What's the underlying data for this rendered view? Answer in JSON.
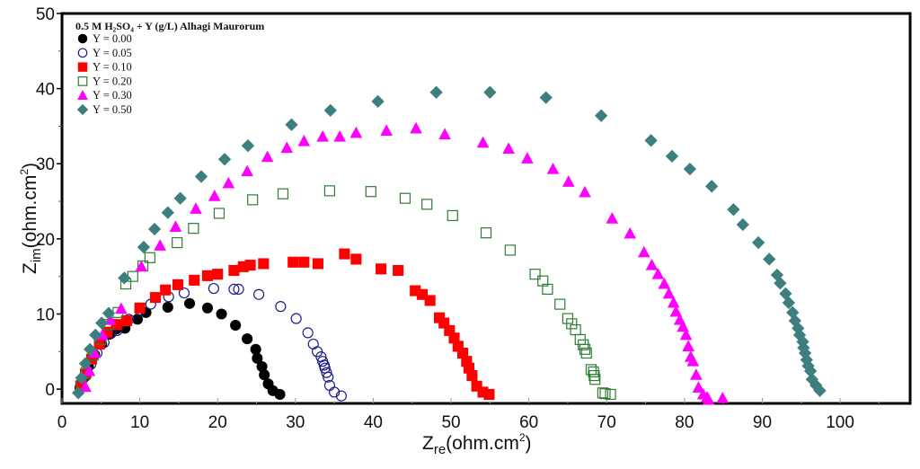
{
  "chart_data": {
    "type": "scatter",
    "title": "",
    "xlabel": "Z",
    "xlabel_sub": "re",
    "xlabel_unit": "(ohm.cm",
    "xlabel_sup": "2",
    "xlabel_close": ")",
    "ylabel": "Z",
    "ylabel_sub": "im",
    "ylabel_unit": "(ohm.cm",
    "ylabel_sup": "2",
    "ylabel_close": ")",
    "xlim": [
      0,
      109
    ],
    "ylim": [
      -1.9,
      50
    ],
    "xticks": [
      0,
      10,
      20,
      30,
      40,
      50,
      60,
      70,
      80,
      90,
      100
    ],
    "yticks": [
      0,
      10,
      20,
      30,
      40,
      50
    ],
    "xminor": [
      5,
      15,
      25,
      35,
      45,
      55,
      65,
      75,
      85,
      95,
      105
    ],
    "yminor": [
      5,
      15,
      25,
      35,
      45
    ],
    "grid": false,
    "legend_title": "0.5 M H₂SO₄ + Y (g/L) Alhagi Maurorum",
    "legend_position": "top-left",
    "series": [
      {
        "name": "Y = 0.00",
        "marker": "filled-circle",
        "color": "#000000",
        "points": [
          [
            2.3,
            0.2
          ],
          [
            2.8,
            1.5
          ],
          [
            3.4,
            3.0
          ],
          [
            4.2,
            4.6
          ],
          [
            5.1,
            6.0
          ],
          [
            6.1,
            7.3
          ],
          [
            7.0,
            8.0
          ],
          [
            8.1,
            8.1
          ],
          [
            9.7,
            9.3
          ],
          [
            10.8,
            10.2
          ],
          [
            13.6,
            10.9
          ],
          [
            16.4,
            11.4
          ],
          [
            18.7,
            10.8
          ],
          [
            20.5,
            10.0
          ],
          [
            22.3,
            8.5
          ],
          [
            23.8,
            6.7
          ],
          [
            24.9,
            5.3
          ],
          [
            25.1,
            4.1
          ],
          [
            25.7,
            3.0
          ],
          [
            26.0,
            1.9
          ],
          [
            26.5,
            0.7
          ],
          [
            27.1,
            -0.2
          ],
          [
            28.0,
            -0.7
          ]
        ]
      },
      {
        "name": "Y = 0.05",
        "marker": "open-circle",
        "color": "#1a1a8c",
        "points": [
          [
            2.4,
            0.3
          ],
          [
            3.0,
            1.7
          ],
          [
            3.7,
            3.3
          ],
          [
            4.5,
            4.8
          ],
          [
            5.4,
            6.2
          ],
          [
            6.3,
            7.4
          ],
          [
            7.1,
            7.8
          ],
          [
            8.6,
            9.3
          ],
          [
            10.0,
            10.5
          ],
          [
            11.4,
            11.3
          ],
          [
            13.7,
            12.3
          ],
          [
            15.7,
            12.8
          ],
          [
            19.5,
            13.4
          ],
          [
            22.1,
            13.3
          ],
          [
            22.7,
            13.3
          ],
          [
            25.3,
            12.6
          ],
          [
            28.1,
            11.0
          ],
          [
            30.1,
            9.4
          ],
          [
            31.6,
            7.5
          ],
          [
            32.3,
            6.0
          ],
          [
            32.8,
            5.0
          ],
          [
            33.3,
            4.3
          ],
          [
            33.5,
            3.7
          ],
          [
            33.7,
            3.2
          ],
          [
            33.8,
            2.8
          ],
          [
            34.0,
            2.2
          ],
          [
            34.2,
            1.6
          ],
          [
            34.4,
            0.5
          ],
          [
            35.0,
            -0.4
          ],
          [
            35.9,
            -0.9
          ]
        ]
      },
      {
        "name": "Y = 0.10",
        "marker": "filled-square",
        "color": "#ff0000",
        "points": [
          [
            2.4,
            0.4
          ],
          [
            3.0,
            2.0
          ],
          [
            3.8,
            4.0
          ],
          [
            4.8,
            6.0
          ],
          [
            5.8,
            7.6
          ],
          [
            7.0,
            8.6
          ],
          [
            8.3,
            9.1
          ],
          [
            10.0,
            10.8
          ],
          [
            12.0,
            12.2
          ],
          [
            13.3,
            13.2
          ],
          [
            14.9,
            13.9
          ],
          [
            17.0,
            14.5
          ],
          [
            18.7,
            15.1
          ],
          [
            20.0,
            15.3
          ],
          [
            22.1,
            15.8
          ],
          [
            23.3,
            16.3
          ],
          [
            24.2,
            16.5
          ],
          [
            25.9,
            16.7
          ],
          [
            29.7,
            16.9
          ],
          [
            31.1,
            16.9
          ],
          [
            32.9,
            16.7
          ],
          [
            36.3,
            18.0
          ],
          [
            37.8,
            17.3
          ],
          [
            41.0,
            16.0
          ],
          [
            43.2,
            15.8
          ],
          [
            45.4,
            13.1
          ],
          [
            46.3,
            12.6
          ],
          [
            47.3,
            11.8
          ],
          [
            48.5,
            9.5
          ],
          [
            49.1,
            8.8
          ],
          [
            49.8,
            7.8
          ],
          [
            50.4,
            6.8
          ],
          [
            50.9,
            5.7
          ],
          [
            51.5,
            4.8
          ],
          [
            52.0,
            3.7
          ],
          [
            52.3,
            2.8
          ],
          [
            52.7,
            1.8
          ],
          [
            53.3,
            0.4
          ],
          [
            54.1,
            -0.4
          ],
          [
            54.9,
            -0.7
          ]
        ]
      },
      {
        "name": "Y = 0.20",
        "marker": "open-square",
        "color": "#2e7d32",
        "points": [
          [
            2.5,
            0.5
          ],
          [
            3.1,
            2.2
          ],
          [
            4.0,
            4.5
          ],
          [
            5.0,
            6.6
          ],
          [
            6.0,
            8.6
          ],
          [
            7.2,
            10.2
          ],
          [
            8.2,
            14.0
          ],
          [
            9.1,
            15.0
          ],
          [
            10.4,
            16.4
          ],
          [
            11.3,
            17.5
          ],
          [
            14.8,
            19.5
          ],
          [
            16.9,
            21.4
          ],
          [
            20.2,
            23.4
          ],
          [
            24.5,
            25.2
          ],
          [
            28.4,
            26.0
          ],
          [
            34.4,
            26.4
          ],
          [
            39.7,
            26.3
          ],
          [
            44.1,
            25.4
          ],
          [
            46.9,
            24.6
          ],
          [
            50.2,
            23.1
          ],
          [
            54.5,
            20.8
          ],
          [
            57.6,
            18.5
          ],
          [
            60.8,
            15.3
          ],
          [
            61.8,
            14.4
          ],
          [
            62.4,
            13.3
          ],
          [
            64.0,
            11.3
          ],
          [
            65.0,
            9.4
          ],
          [
            65.5,
            8.7
          ],
          [
            66.0,
            7.9
          ],
          [
            66.6,
            6.6
          ],
          [
            67.0,
            5.9
          ],
          [
            67.2,
            5.3
          ],
          [
            67.4,
            4.8
          ],
          [
            68.0,
            2.6
          ],
          [
            68.3,
            2.3
          ],
          [
            68.4,
            1.8
          ],
          [
            68.5,
            1.3
          ],
          [
            69.5,
            -0.5
          ],
          [
            69.8,
            -0.6
          ],
          [
            70.5,
            -0.7
          ]
        ]
      },
      {
        "name": "Y = 0.30",
        "marker": "filled-triangle",
        "color": "#ff00ff",
        "points": [
          [
            3.0,
            0.3
          ],
          [
            3.5,
            2.4
          ],
          [
            4.2,
            4.8
          ],
          [
            5.2,
            7.2
          ],
          [
            6.2,
            9.2
          ],
          [
            7.6,
            10.7
          ],
          [
            10.2,
            16.3
          ],
          [
            12.6,
            19.1
          ],
          [
            14.6,
            21.6
          ],
          [
            17.2,
            24.0
          ],
          [
            19.6,
            25.7
          ],
          [
            21.4,
            27.4
          ],
          [
            23.8,
            29.0
          ],
          [
            26.4,
            30.9
          ],
          [
            28.9,
            32.1
          ],
          [
            31.1,
            33.0
          ],
          [
            33.5,
            33.6
          ],
          [
            35.7,
            33.6
          ],
          [
            37.8,
            34.1
          ],
          [
            41.7,
            34.4
          ],
          [
            45.5,
            34.7
          ],
          [
            49.2,
            33.9
          ],
          [
            54.1,
            32.8
          ],
          [
            57.4,
            32.0
          ],
          [
            59.8,
            30.7
          ],
          [
            63.1,
            29.3
          ],
          [
            65.1,
            27.6
          ],
          [
            67.2,
            26.2
          ],
          [
            70.7,
            22.7
          ],
          [
            73.0,
            20.7
          ],
          [
            74.8,
            18.2
          ],
          [
            75.8,
            16.5
          ],
          [
            76.6,
            15.3
          ],
          [
            77.4,
            14.0
          ],
          [
            78.0,
            12.7
          ],
          [
            78.6,
            11.5
          ],
          [
            78.9,
            10.3
          ],
          [
            79.4,
            9.2
          ],
          [
            79.8,
            8.3
          ],
          [
            80.2,
            7.2
          ],
          [
            80.5,
            5.7
          ],
          [
            80.8,
            4.3
          ],
          [
            81.1,
            3.7
          ],
          [
            81.5,
            1.9
          ],
          [
            81.8,
            0.2
          ],
          [
            82.4,
            -0.7
          ],
          [
            82.9,
            -1.1
          ],
          [
            83.1,
            -1.4
          ],
          [
            84.9,
            -1.2
          ]
        ]
      },
      {
        "name": "Y = 0.50",
        "marker": "filled-diamond",
        "color": "#3d7f7f",
        "points": [
          [
            2.1,
            -0.5
          ],
          [
            2.5,
            1.5
          ],
          [
            3.0,
            3.4
          ],
          [
            3.6,
            5.3
          ],
          [
            4.3,
            7.2
          ],
          [
            5.1,
            8.8
          ],
          [
            6.0,
            10.1
          ],
          [
            8.0,
            14.8
          ],
          [
            10.5,
            18.9
          ],
          [
            11.9,
            21.3
          ],
          [
            13.6,
            23.5
          ],
          [
            15.2,
            25.4
          ],
          [
            17.9,
            28.3
          ],
          [
            20.9,
            30.6
          ],
          [
            23.9,
            32.4
          ],
          [
            29.5,
            35.2
          ],
          [
            34.5,
            37.1
          ],
          [
            40.6,
            38.3
          ],
          [
            48.1,
            39.5
          ],
          [
            55.0,
            39.5
          ],
          [
            62.2,
            38.8
          ],
          [
            69.3,
            36.4
          ],
          [
            75.7,
            33.1
          ],
          [
            78.4,
            31.0
          ],
          [
            80.7,
            29.3
          ],
          [
            83.5,
            27.0
          ],
          [
            86.3,
            23.9
          ],
          [
            87.5,
            21.9
          ],
          [
            89.5,
            19.5
          ],
          [
            90.9,
            17.3
          ],
          [
            91.9,
            15.2
          ],
          [
            92.3,
            14.1
          ],
          [
            93.0,
            12.7
          ],
          [
            93.4,
            11.5
          ],
          [
            93.9,
            10.2
          ],
          [
            94.2,
            9.1
          ],
          [
            94.6,
            8.1
          ],
          [
            94.8,
            7.2
          ],
          [
            95.2,
            6.3
          ],
          [
            95.3,
            5.5
          ],
          [
            95.5,
            4.8
          ],
          [
            95.7,
            3.9
          ],
          [
            95.9,
            3.1
          ],
          [
            96.2,
            2.4
          ],
          [
            96.4,
            1.3
          ],
          [
            96.9,
            0.5
          ],
          [
            97.4,
            -0.2
          ]
        ]
      }
    ]
  }
}
